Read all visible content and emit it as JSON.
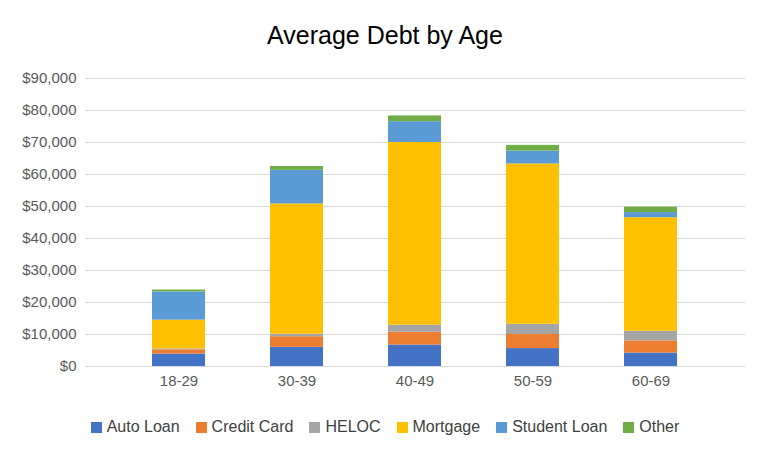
{
  "chart_data": {
    "type": "bar",
    "title": "Average Debt by Age",
    "stacked": true,
    "grid": true,
    "legend": "bottom",
    "categories": [
      "18-29",
      "30-39",
      "40-49",
      "50-59",
      "60-69"
    ],
    "series": [
      {
        "name": "Auto Loan",
        "color": "#4472c4",
        "values": [
          3900,
          6000,
          6700,
          5600,
          4200
        ]
      },
      {
        "name": "Credit Card",
        "color": "#ed7d31",
        "values": [
          1300,
          3300,
          4000,
          4400,
          3800
        ]
      },
      {
        "name": "HELOC",
        "color": "#a5a5a5",
        "values": [
          300,
          800,
          2200,
          3200,
          3000
        ]
      },
      {
        "name": "Mortgage",
        "color": "#ffc000",
        "values": [
          9000,
          40700,
          57100,
          50100,
          35500
        ]
      },
      {
        "name": "Student Loan",
        "color": "#5b9bd5",
        "values": [
          8800,
          10500,
          6500,
          4000,
          1600
        ]
      },
      {
        "name": "Other",
        "color": "#70ad47",
        "values": [
          600,
          1200,
          1800,
          1800,
          1700
        ]
      }
    ],
    "ylim": [
      0,
      90000
    ],
    "yticks": [
      {
        "value": 0,
        "label": "$0"
      },
      {
        "value": 10000,
        "label": "$10,000"
      },
      {
        "value": 20000,
        "label": "$20,000"
      },
      {
        "value": 30000,
        "label": "$30,000"
      },
      {
        "value": 40000,
        "label": "$40,000"
      },
      {
        "value": 50000,
        "label": "$50,000"
      },
      {
        "value": 60000,
        "label": "$60,000"
      },
      {
        "value": 70000,
        "label": "$70,000"
      },
      {
        "value": 80000,
        "label": "$80,000"
      },
      {
        "value": 90000,
        "label": "$90,000"
      }
    ]
  }
}
